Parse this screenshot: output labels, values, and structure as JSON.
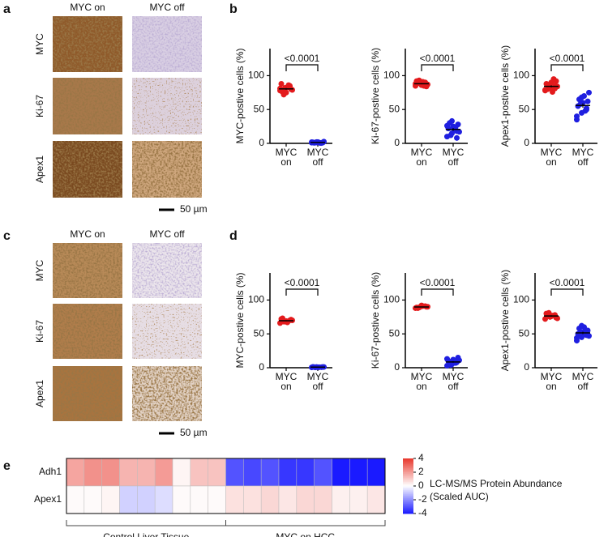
{
  "panels": [
    "a",
    "b",
    "c",
    "d",
    "e"
  ],
  "ihc": [
    {
      "columns": [
        "MYC on",
        "MYC off"
      ],
      "rows": [
        "MYC",
        "Ki-67",
        "Apex1"
      ],
      "scale_bar": "50 µm"
    },
    {
      "columns": [
        "MYC on",
        "MYC off"
      ],
      "rows": [
        "MYC",
        "Ki-67",
        "Apex1"
      ],
      "scale_bar": "50 µm"
    }
  ],
  "chart_data": [
    {
      "type": "strip",
      "ylabel": "MYC-postive cells (%)",
      "categories": [
        "MYC on",
        "MYC off"
      ],
      "colors": [
        "#e31a1c",
        "#1f1fe0"
      ],
      "annotation": "<0.0001",
      "ylim": [
        0,
        140
      ],
      "yticks": [
        0,
        50,
        100
      ],
      "values": [
        [
          78,
          82,
          85,
          88,
          75,
          80,
          76,
          83,
          79,
          72,
          86,
          81,
          77,
          84
        ],
        [
          1,
          2,
          0.5,
          1.5,
          2,
          1,
          0.8,
          1.2,
          2.5,
          1,
          0.5,
          1.8,
          1.3,
          0.7
        ]
      ]
    },
    {
      "type": "strip",
      "ylabel": "Ki-67-postive cells (%)",
      "categories": [
        "MYC on",
        "MYC off"
      ],
      "colors": [
        "#e31a1c",
        "#1f1fe0"
      ],
      "annotation": "<0.0001",
      "ylim": [
        0,
        140
      ],
      "yticks": [
        0,
        50,
        100
      ],
      "values": [
        [
          85,
          88,
          90,
          92,
          86,
          84,
          89,
          91,
          87,
          93,
          85,
          88,
          90,
          86
        ],
        [
          10,
          15,
          18,
          22,
          25,
          28,
          30,
          20,
          17,
          12,
          24,
          26,
          33,
          8
        ]
      ]
    },
    {
      "type": "strip",
      "ylabel": "Apex1-postive cells (%)",
      "categories": [
        "MYC on",
        "MYC off"
      ],
      "colors": [
        "#e31a1c",
        "#1f1fe0"
      ],
      "annotation": "<0.0001",
      "ylim": [
        0,
        140
      ],
      "yticks": [
        0,
        50,
        100
      ],
      "values": [
        [
          78,
          82,
          85,
          88,
          90,
          92,
          80,
          76,
          84,
          86,
          95,
          79,
          83,
          81
        ],
        [
          35,
          45,
          50,
          55,
          60,
          62,
          65,
          70,
          75,
          58,
          48,
          40,
          68,
          52
        ]
      ]
    },
    {
      "type": "strip",
      "ylabel": "MYC-postive cells (%)",
      "categories": [
        "MYC on",
        "MYC off"
      ],
      "colors": [
        "#e31a1c",
        "#1f1fe0"
      ],
      "annotation": "<0.0001",
      "ylim": [
        0,
        140
      ],
      "yticks": [
        0,
        50,
        100
      ],
      "values": [
        [
          66,
          68,
          70,
          72,
          69,
          71,
          73,
          67,
          70,
          68
        ],
        [
          0.5,
          1,
          0.8,
          1.2,
          0.6,
          1,
          0.9,
          0.7,
          1.1,
          0.5
        ]
      ]
    },
    {
      "type": "strip",
      "ylabel": "Ki-67-postive cells (%)",
      "categories": [
        "MYC on",
        "MYC off"
      ],
      "colors": [
        "#e31a1c",
        "#1f1fe0"
      ],
      "annotation": "<0.0001",
      "ylim": [
        0,
        140
      ],
      "yticks": [
        0,
        50,
        100
      ],
      "values": [
        [
          88,
          90,
          91,
          89,
          92,
          90,
          88,
          91,
          90,
          89
        ],
        [
          3,
          5,
          8,
          10,
          12,
          15,
          6,
          9,
          11,
          4,
          7,
          13
        ]
      ]
    },
    {
      "type": "strip",
      "ylabel": "Apex1-postive cells (%)",
      "categories": [
        "MYC on",
        "MYC off"
      ],
      "colors": [
        "#e31a1c",
        "#1f1fe0"
      ],
      "annotation": "<0.0001",
      "ylim": [
        0,
        140
      ],
      "yticks": [
        0,
        50,
        100
      ],
      "values": [
        [
          72,
          75,
          78,
          80,
          76,
          74,
          79,
          77,
          73,
          81
        ],
        [
          40,
          45,
          48,
          50,
          52,
          55,
          58,
          60,
          47,
          53,
          56,
          44,
          62,
          50
        ]
      ]
    },
    {
      "type": "heatmap",
      "rows": [
        "Adh1",
        "Apex1"
      ],
      "values": [
        [
          1.8,
          2.2,
          2.2,
          1.5,
          1.5,
          2,
          0.2,
          1.2,
          1.2,
          -3,
          -3.2,
          -3,
          -3.5,
          -3.5,
          -3,
          -4,
          -4,
          -4
        ],
        [
          0.1,
          0.1,
          0.2,
          -0.8,
          -0.8,
          -0.6,
          0.1,
          0.1,
          0.1,
          0.6,
          0.6,
          0.8,
          0.5,
          0.8,
          0.8,
          0.3,
          0.3,
          0.5
        ]
      ],
      "colors": [
        "#1a1aff",
        "#ffffff",
        "#e8372c"
      ],
      "colorbar": {
        "lim": [
          -4,
          4
        ],
        "ticks": [
          4,
          2,
          0,
          -2,
          -4
        ],
        "label": [
          "LC-MS/MS Protein Abundance",
          "(Scaled AUC)"
        ]
      },
      "groups": [
        "Control Liver Tissue",
        "MYC on HCC"
      ]
    }
  ]
}
